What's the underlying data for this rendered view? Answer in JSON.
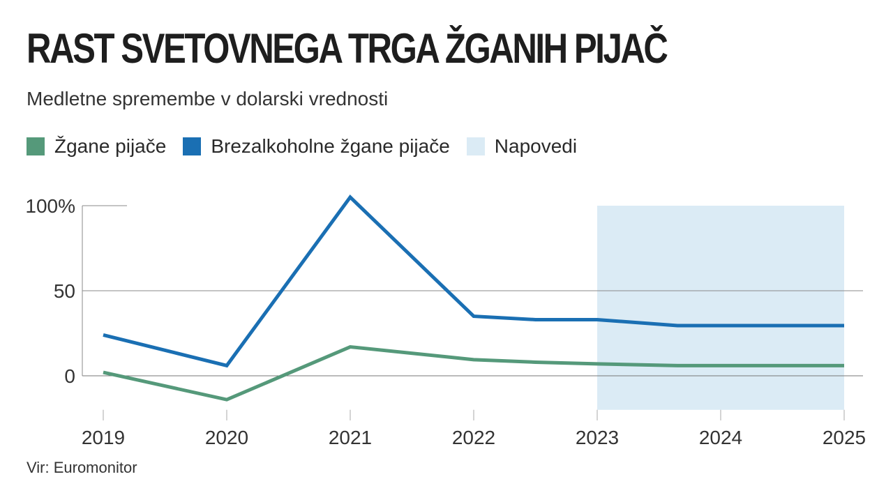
{
  "title": "RAST SVETOVNEGA TRGA ŽGANIH PIJAČ",
  "subtitle": "Medletne spremembe v dolarski vrednosti",
  "source": "Vir: Euromonitor",
  "legend": [
    {
      "label": "Žgane pijače",
      "color": "#55997a"
    },
    {
      "label": "Brezalkoholne žgane pijače",
      "color": "#1a6fb3"
    },
    {
      "label": "Napovedi",
      "color": "#dbebf5"
    }
  ],
  "chart_data": {
    "type": "line",
    "x": [
      2019,
      2020,
      2021,
      2022,
      2022.5,
      2023,
      2023.65,
      2024,
      2025
    ],
    "x_ticks": [
      "2019",
      "2020",
      "2021",
      "2022",
      "2023",
      "2024",
      "2025"
    ],
    "y_ticks": [
      "100%",
      "50",
      "0"
    ],
    "ylim": [
      -20,
      100
    ],
    "forecast_range": [
      2023,
      2025
    ],
    "series": [
      {
        "name": "Žgane pijače",
        "color": "#55997a",
        "values": [
          2,
          -14,
          17,
          9.5,
          8,
          7,
          6,
          6,
          6
        ]
      },
      {
        "name": "Brezalkoholne žgane pijače",
        "color": "#1a6fb3",
        "values": [
          24,
          6,
          105,
          35,
          33,
          33,
          29.5,
          29.5,
          29.5
        ]
      }
    ],
    "grid": "horizontal"
  }
}
